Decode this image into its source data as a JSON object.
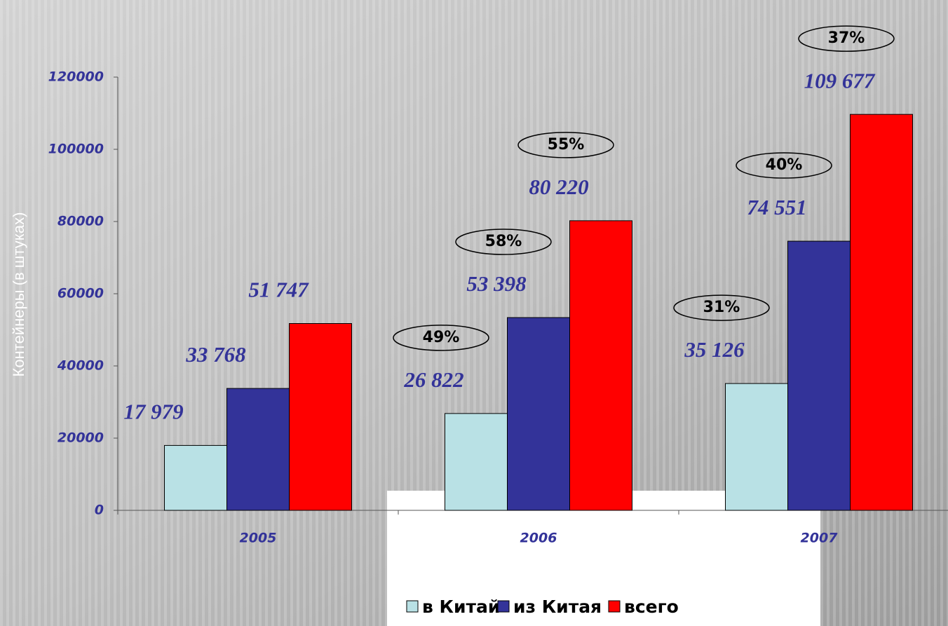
{
  "chart_data": {
    "type": "bar",
    "y_label": "Контейнеры (в штуках)",
    "categories": [
      "2005",
      "2006",
      "2007"
    ],
    "series": [
      {
        "name": "в Китай",
        "color": "#b9e1e5",
        "values": [
          17979,
          26822,
          35126
        ],
        "value_labels": [
          "17 979",
          "26 822",
          "35 126"
        ],
        "growth_labels": [
          null,
          "49%",
          "31%"
        ]
      },
      {
        "name": "из Китая",
        "color": "#333399",
        "values": [
          33768,
          53398,
          74551
        ],
        "value_labels": [
          "33 768",
          "53 398",
          "74 551"
        ],
        "growth_labels": [
          null,
          "58%",
          "40%"
        ]
      },
      {
        "name": "всего",
        "color": "#ff0000",
        "values": [
          51747,
          80220,
          109677
        ],
        "value_labels": [
          "51 747",
          "80 220",
          "109 677"
        ],
        "growth_labels": [
          null,
          "55%",
          "37%"
        ]
      }
    ],
    "ylim": [
      0,
      120000
    ],
    "yticks": [
      0,
      20000,
      40000,
      60000,
      80000,
      100000,
      120000
    ],
    "legend": "bottom"
  }
}
